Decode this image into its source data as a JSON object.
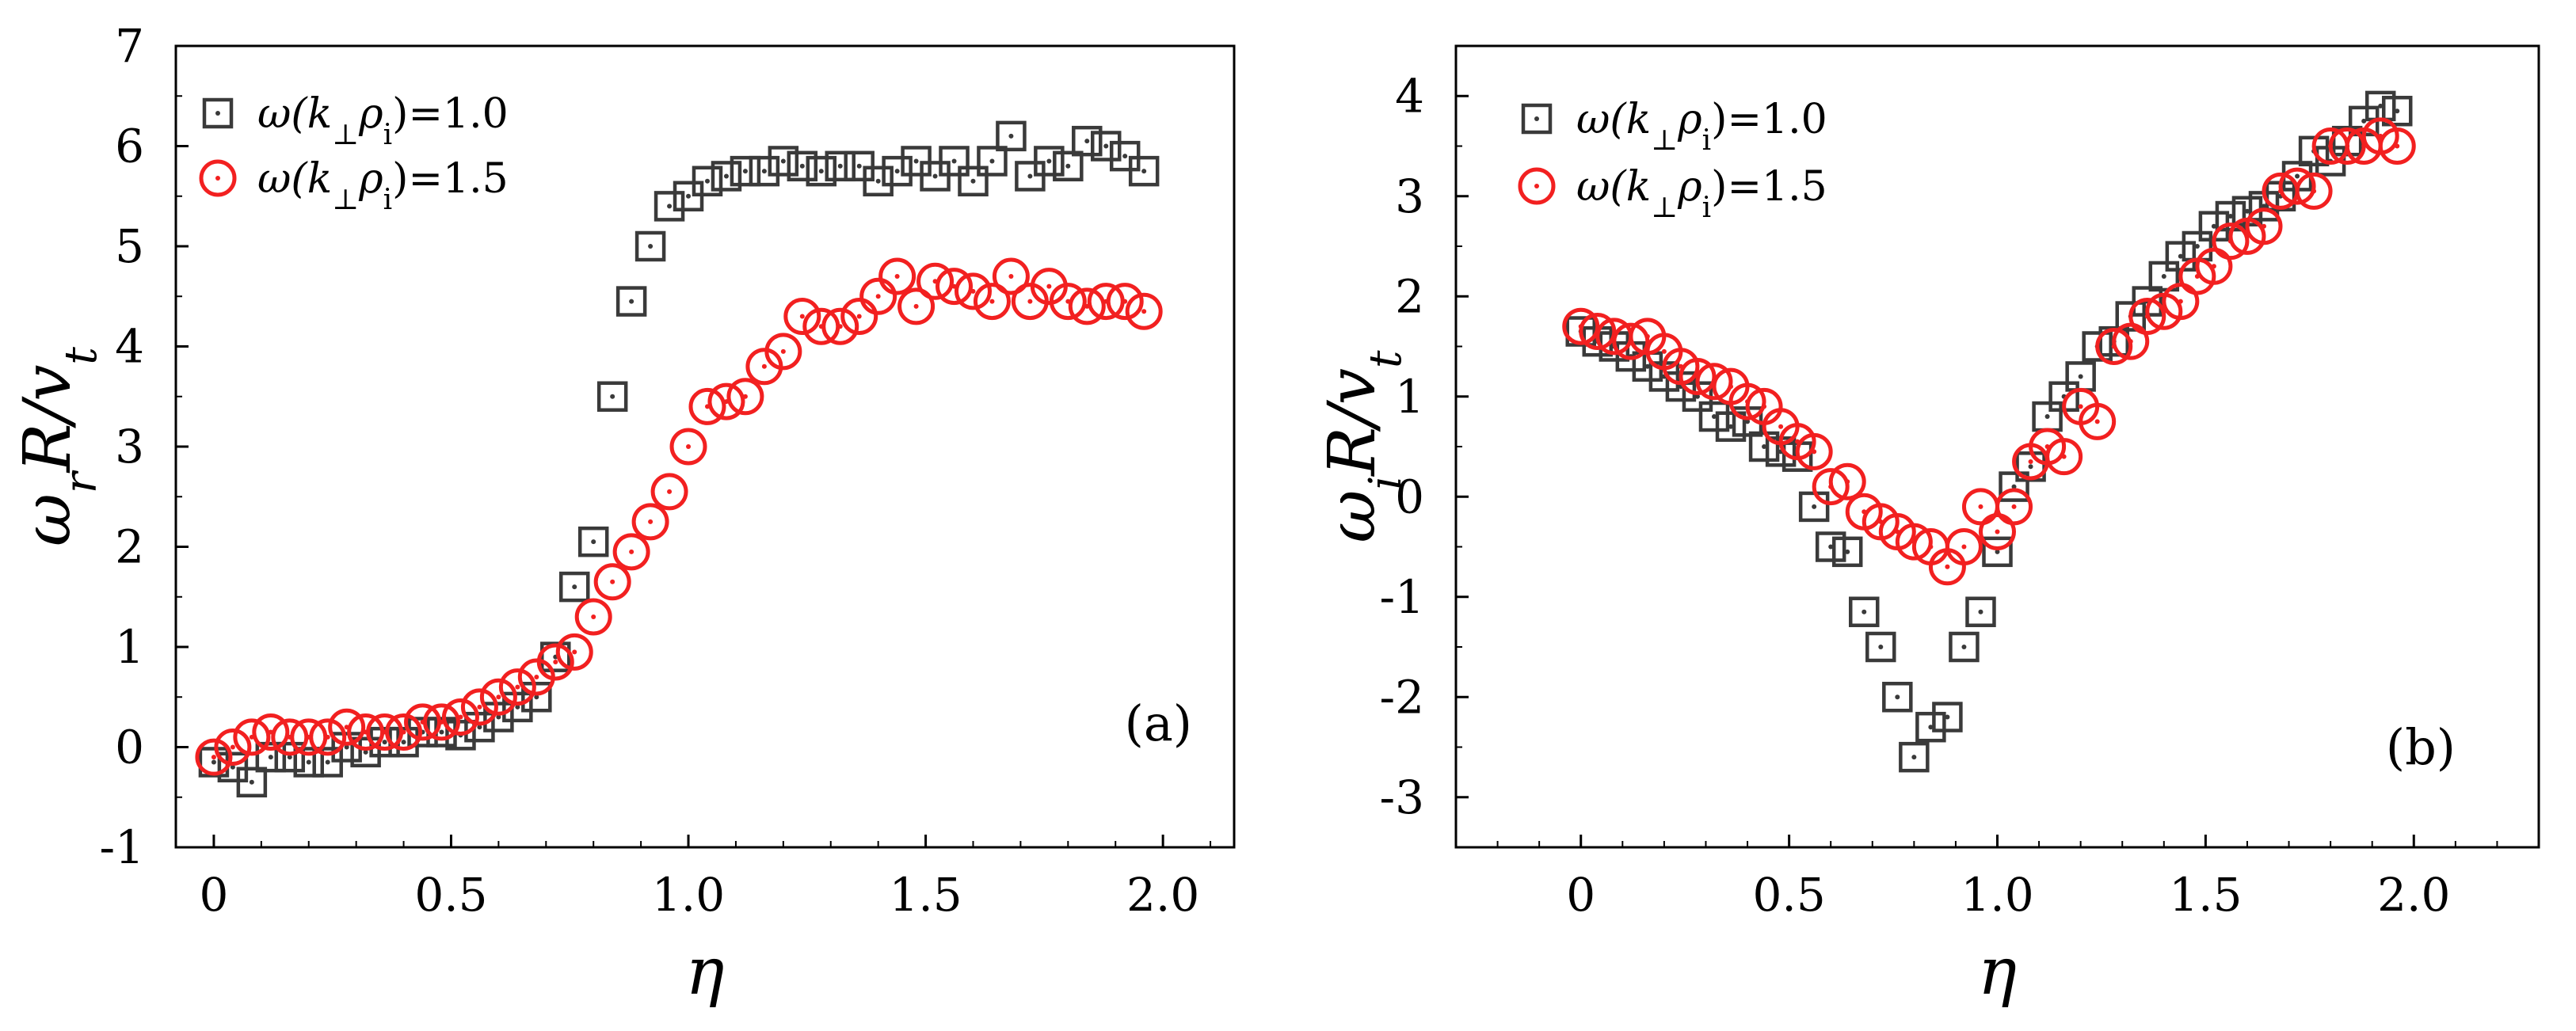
{
  "chart_data": [
    {
      "type": "scatter",
      "panel_label": "(a)",
      "xlabel": "η",
      "ylabel_base": "ω",
      "ylabel_sub": "r",
      "ylabel_rest": "R/v",
      "ylabel_tail_sub": "t",
      "xlim": [
        -0.08,
        2.15
      ],
      "ylim": [
        -1,
        7
      ],
      "xticks": [
        {
          "v": 0,
          "label": "0"
        },
        {
          "v": 0.5,
          "label": "0.5"
        },
        {
          "v": 1.0,
          "label": "1.0"
        },
        {
          "v": 1.5,
          "label": "1.5"
        },
        {
          "v": 2.0,
          "label": "2.0"
        }
      ],
      "yticks": [
        {
          "v": -1,
          "label": "-1"
        },
        {
          "v": 0,
          "label": "0"
        },
        {
          "v": 1,
          "label": "1"
        },
        {
          "v": 2,
          "label": "2"
        },
        {
          "v": 3,
          "label": "3"
        },
        {
          "v": 4,
          "label": "4"
        },
        {
          "v": 5,
          "label": "5"
        },
        {
          "v": 6,
          "label": "6"
        },
        {
          "v": 7,
          "label": "7"
        }
      ],
      "legend_position": "top-left",
      "series": [
        {
          "name": "ω(k⊥ρi)=1.0",
          "legend_pre": "ω(k",
          "legend_sub1": "⊥",
          "legend_mid": "ρ",
          "legend_sub2": "i",
          "legend_post": ")=1.0",
          "marker": "square",
          "color": "#3a3a3a",
          "x": [
            0.0,
            0.04,
            0.08,
            0.12,
            0.16,
            0.2,
            0.24,
            0.28,
            0.32,
            0.36,
            0.4,
            0.44,
            0.48,
            0.52,
            0.56,
            0.6,
            0.64,
            0.68,
            0.72,
            0.76,
            0.8,
            0.84,
            0.88,
            0.92,
            0.96,
            1.0,
            1.04,
            1.08,
            1.12,
            1.16,
            1.2,
            1.24,
            1.28,
            1.32,
            1.36,
            1.4,
            1.44,
            1.48,
            1.52,
            1.56,
            1.6,
            1.64,
            1.68,
            1.72,
            1.76,
            1.8,
            1.84,
            1.88,
            1.92,
            1.96
          ],
          "y": [
            -0.15,
            -0.2,
            -0.35,
            -0.1,
            -0.1,
            -0.15,
            -0.15,
            0.0,
            -0.05,
            0.05,
            0.05,
            0.15,
            0.15,
            0.12,
            0.2,
            0.3,
            0.4,
            0.5,
            0.9,
            1.6,
            2.05,
            3.5,
            4.45,
            5.0,
            5.4,
            5.5,
            5.65,
            5.7,
            5.75,
            5.75,
            5.85,
            5.8,
            5.75,
            5.8,
            5.8,
            5.65,
            5.75,
            5.85,
            5.7,
            5.85,
            5.65,
            5.85,
            6.1,
            5.7,
            5.85,
            5.8,
            6.05,
            6.0,
            5.9,
            5.75
          ]
        },
        {
          "name": "ω(k⊥ρi)=1.5",
          "legend_pre": "ω(k",
          "legend_sub1": "⊥",
          "legend_mid": "ρ",
          "legend_sub2": "i",
          "legend_post": ")=1.5",
          "marker": "circle",
          "color": "#f22020",
          "x": [
            0.0,
            0.04,
            0.08,
            0.12,
            0.16,
            0.2,
            0.24,
            0.28,
            0.32,
            0.36,
            0.4,
            0.44,
            0.48,
            0.52,
            0.56,
            0.6,
            0.64,
            0.68,
            0.72,
            0.76,
            0.8,
            0.84,
            0.88,
            0.92,
            0.96,
            1.0,
            1.04,
            1.08,
            1.12,
            1.16,
            1.2,
            1.24,
            1.28,
            1.32,
            1.36,
            1.4,
            1.44,
            1.48,
            1.52,
            1.56,
            1.6,
            1.64,
            1.68,
            1.72,
            1.76,
            1.8,
            1.84,
            1.88,
            1.92,
            1.96
          ],
          "y": [
            -0.1,
            0.0,
            0.1,
            0.15,
            0.1,
            0.1,
            0.1,
            0.2,
            0.15,
            0.15,
            0.15,
            0.25,
            0.25,
            0.3,
            0.4,
            0.5,
            0.6,
            0.7,
            0.85,
            0.95,
            1.3,
            1.65,
            1.95,
            2.25,
            2.55,
            3.0,
            3.4,
            3.45,
            3.5,
            3.8,
            3.95,
            4.3,
            4.2,
            4.2,
            4.3,
            4.5,
            4.7,
            4.4,
            4.65,
            4.6,
            4.55,
            4.45,
            4.7,
            4.45,
            4.6,
            4.45,
            4.4,
            4.45,
            4.45,
            4.35
          ]
        }
      ]
    },
    {
      "type": "scatter",
      "panel_label": "(b)",
      "xlabel": "η",
      "ylabel_base": "ω",
      "ylabel_sub": "i",
      "ylabel_rest": "R/v",
      "ylabel_tail_sub": "t",
      "xlim": [
        -0.3,
        2.3
      ],
      "ylim": [
        -3.5,
        4.5
      ],
      "xticks": [
        {
          "v": 0,
          "label": "0"
        },
        {
          "v": 0.5,
          "label": "0.5"
        },
        {
          "v": 1.0,
          "label": "1.0"
        },
        {
          "v": 1.5,
          "label": "1.5"
        },
        {
          "v": 2.0,
          "label": "2.0"
        }
      ],
      "yticks": [
        {
          "v": -3,
          "label": "-3"
        },
        {
          "v": -2,
          "label": "-2"
        },
        {
          "v": -1,
          "label": "-1"
        },
        {
          "v": 0,
          "label": "0"
        },
        {
          "v": 1,
          "label": "1"
        },
        {
          "v": 2,
          "label": "2"
        },
        {
          "v": 3,
          "label": "3"
        },
        {
          "v": 4,
          "label": "4"
        }
      ],
      "legend_position": "top-left",
      "series": [
        {
          "name": "ω(k⊥ρi)=1.0",
          "legend_pre": "ω(k",
          "legend_sub1": "⊥",
          "legend_mid": "ρ",
          "legend_sub2": "i",
          "legend_post": ")=1.0",
          "marker": "square",
          "color": "#3a3a3a",
          "x": [
            0.0,
            0.04,
            0.08,
            0.12,
            0.16,
            0.2,
            0.24,
            0.28,
            0.32,
            0.36,
            0.4,
            0.44,
            0.48,
            0.52,
            0.56,
            0.6,
            0.64,
            0.68,
            0.72,
            0.76,
            0.8,
            0.84,
            0.88,
            0.92,
            0.96,
            1.0,
            1.04,
            1.08,
            1.12,
            1.16,
            1.2,
            1.24,
            1.28,
            1.32,
            1.36,
            1.4,
            1.44,
            1.48,
            1.52,
            1.56,
            1.6,
            1.64,
            1.68,
            1.72,
            1.76,
            1.8,
            1.84,
            1.88,
            1.92,
            1.96
          ],
          "y": [
            1.65,
            1.55,
            1.5,
            1.4,
            1.3,
            1.2,
            1.1,
            1.0,
            0.8,
            0.7,
            0.75,
            0.5,
            0.45,
            0.4,
            -0.1,
            -0.5,
            -0.55,
            -1.15,
            -1.5,
            -2.0,
            -2.6,
            -2.3,
            -2.2,
            -1.5,
            -1.15,
            -0.55,
            0.1,
            0.3,
            0.8,
            1.0,
            1.2,
            1.5,
            1.55,
            1.8,
            1.95,
            2.2,
            2.4,
            2.5,
            2.7,
            2.8,
            2.85,
            2.9,
            3.0,
            3.2,
            3.45,
            3.35,
            3.55,
            3.75,
            3.9,
            3.85
          ]
        },
        {
          "name": "ω(k⊥ρi)=1.5",
          "legend_pre": "ω(k",
          "legend_sub1": "⊥",
          "legend_mid": "ρ",
          "legend_sub2": "i",
          "legend_post": ")=1.5",
          "marker": "circle",
          "color": "#f22020",
          "x": [
            0.0,
            0.04,
            0.08,
            0.12,
            0.16,
            0.2,
            0.24,
            0.28,
            0.32,
            0.36,
            0.4,
            0.44,
            0.48,
            0.52,
            0.56,
            0.6,
            0.64,
            0.68,
            0.72,
            0.76,
            0.8,
            0.84,
            0.88,
            0.92,
            0.96,
            1.0,
            1.04,
            1.08,
            1.12,
            1.16,
            1.2,
            1.24,
            1.28,
            1.32,
            1.36,
            1.4,
            1.44,
            1.48,
            1.52,
            1.56,
            1.6,
            1.64,
            1.68,
            1.72,
            1.76,
            1.8,
            1.84,
            1.88,
            1.92,
            1.96
          ],
          "y": [
            1.7,
            1.65,
            1.6,
            1.55,
            1.6,
            1.45,
            1.3,
            1.2,
            1.15,
            1.1,
            0.95,
            0.9,
            0.7,
            0.55,
            0.45,
            0.1,
            0.15,
            -0.15,
            -0.25,
            -0.35,
            -0.45,
            -0.5,
            -0.7,
            -0.5,
            -0.1,
            -0.35,
            -0.1,
            0.35,
            0.5,
            0.4,
            0.9,
            0.75,
            1.5,
            1.55,
            1.8,
            1.85,
            1.95,
            2.2,
            2.3,
            2.55,
            2.6,
            2.7,
            3.05,
            3.1,
            3.05,
            3.5,
            3.5,
            3.5,
            3.6,
            3.5
          ]
        }
      ]
    }
  ]
}
